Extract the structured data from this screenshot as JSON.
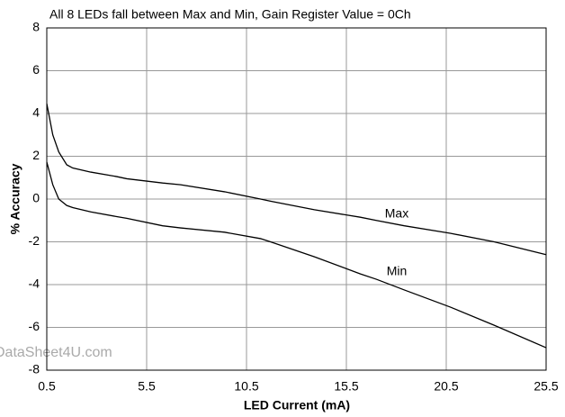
{
  "chart_data": {
    "type": "line",
    "title": "All 8 LEDs fall between Max and Min, Gain Register Value = 0Ch",
    "x_label": "LED Current (mA)",
    "y_label": "% Accuracy",
    "annotation": "DataSheet4U.com",
    "x": [
      0.5,
      0.8,
      1.1,
      1.5,
      1.8,
      2.7,
      4,
      4.5,
      6.3,
      7.2,
      9.4,
      11.2,
      11.7,
      13.9,
      16.2,
      17,
      18.4,
      20.7,
      22.9,
      25.5
    ],
    "series": [
      {
        "name": "Max",
        "color": "#000000",
        "values": [
          4.46,
          3.0,
          2.2,
          1.6,
          1.45,
          1.26,
          1.05,
          0.95,
          0.75,
          0.67,
          0.34,
          0.0,
          -0.1,
          -0.5,
          -0.85,
          -1.0,
          -1.25,
          -1.6,
          -2.0,
          -2.6
        ]
      },
      {
        "name": "Min",
        "color": "#000000",
        "values": [
          1.73,
          0.67,
          0.0,
          -0.3,
          -0.4,
          -0.6,
          -0.82,
          -0.9,
          -1.25,
          -1.35,
          -1.55,
          -1.85,
          -2.0,
          -2.7,
          -3.5,
          -3.75,
          -4.25,
          -5.05,
          -5.9,
          -6.95
        ]
      }
    ],
    "xlim": [
      0.5,
      25.5
    ],
    "xticks": [
      0.5,
      5.5,
      10.5,
      15.5,
      20.5,
      25.5
    ],
    "ylim": [
      -8,
      8
    ],
    "yticks": [
      -8,
      -6,
      -4,
      -2,
      0,
      2,
      4,
      6,
      8
    ],
    "grid": true
  }
}
